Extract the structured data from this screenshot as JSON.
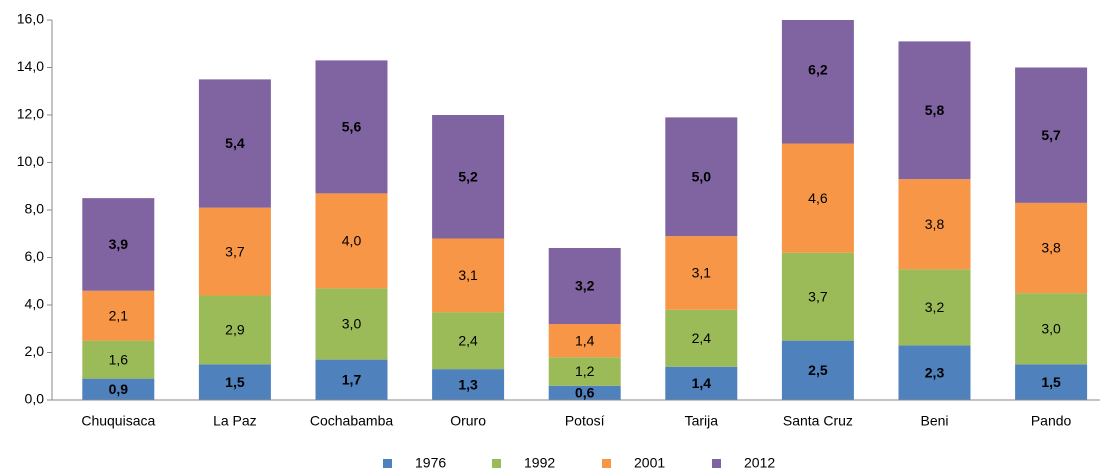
{
  "chart_data": {
    "type": "stacked_bar",
    "categories": [
      "Chuquisaca",
      "La Paz",
      "Cochabamba",
      "Oruro",
      "Potosí",
      "Tarija",
      "Santa Cruz",
      "Beni",
      "Pando"
    ],
    "series": [
      {
        "name": "1976",
        "color": "#4f81bd",
        "values": [
          0.9,
          1.5,
          1.7,
          1.3,
          0.6,
          1.4,
          2.5,
          2.3,
          1.5
        ],
        "value_labels": [
          "0,9",
          "1,5",
          "1,7",
          "1,3",
          "0,6",
          "1,4",
          "2,5",
          "2,3",
          "1,5"
        ]
      },
      {
        "name": "1992",
        "color": "#9bbb59",
        "values": [
          1.6,
          2.9,
          3.0,
          2.4,
          1.2,
          2.4,
          3.7,
          3.2,
          3.0
        ],
        "value_labels": [
          "1,6",
          "2,9",
          "3,0",
          "2,4",
          "1,2",
          "2,4",
          "3,7",
          "3,2",
          "3,0"
        ]
      },
      {
        "name": "2001",
        "color": "#f79646",
        "values": [
          2.1,
          3.7,
          4.0,
          3.1,
          1.4,
          3.1,
          4.6,
          3.8,
          3.8
        ],
        "value_labels": [
          "2,1",
          "3,7",
          "4,0",
          "3,1",
          "1,4",
          "3,1",
          "4,6",
          "3,8",
          "3,8"
        ]
      },
      {
        "name": "2012",
        "color": "#8064a2",
        "values": [
          3.9,
          5.4,
          5.6,
          5.2,
          3.2,
          5.0,
          6.2,
          5.8,
          5.7
        ],
        "value_labels": [
          "3,9",
          "5,4",
          "5,6",
          "5,2",
          "3,2",
          "5,0",
          "6,2",
          "5,8",
          "5,7"
        ]
      }
    ],
    "ylim": [
      0,
      16
    ],
    "yticks": [
      {
        "value": 0,
        "label": "0,0"
      },
      {
        "value": 2,
        "label": "2,0"
      },
      {
        "value": 4,
        "label": "4,0"
      },
      {
        "value": 6,
        "label": "6,0"
      },
      {
        "value": 8,
        "label": "8,0"
      },
      {
        "value": 10,
        "label": "10,0"
      },
      {
        "value": 12,
        "label": "12,0"
      },
      {
        "value": 14,
        "label": "14,0"
      },
      {
        "value": 16,
        "label": "16,0"
      }
    ],
    "grid": false,
    "legend": "bottom"
  }
}
